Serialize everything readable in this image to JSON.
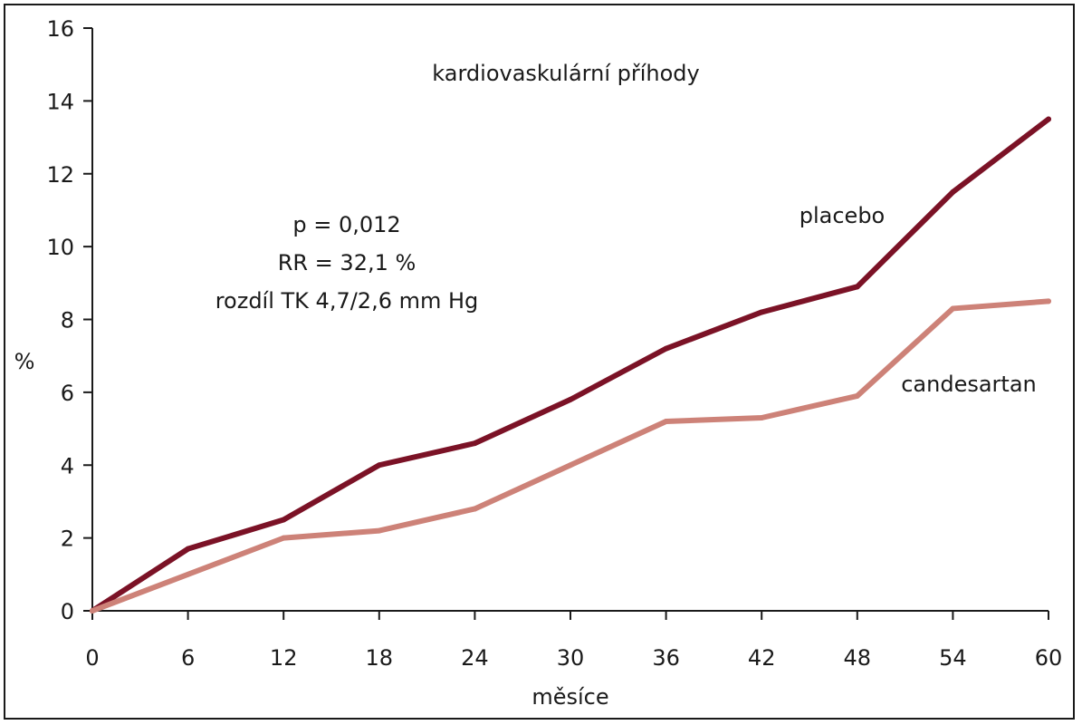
{
  "chart_data": {
    "type": "line",
    "title": "kardiovaskulární příhody",
    "xlabel": "měsíce",
    "ylabel": "%",
    "x": [
      0,
      6,
      12,
      18,
      24,
      30,
      36,
      42,
      48,
      54,
      60
    ],
    "xticks": [
      0,
      6,
      12,
      18,
      24,
      30,
      36,
      42,
      48,
      54,
      60
    ],
    "yticks": [
      0,
      2,
      4,
      6,
      8,
      10,
      12,
      14,
      16
    ],
    "xlim": [
      0,
      60
    ],
    "ylim": [
      0,
      16
    ],
    "grid": false,
    "series": [
      {
        "name": "placebo",
        "color": "#7b1226",
        "values": [
          0,
          1.7,
          2.5,
          4.0,
          4.6,
          5.8,
          7.2,
          8.2,
          8.9,
          11.5,
          13.5
        ]
      },
      {
        "name": "candesartan",
        "color": "#cd8278",
        "values": [
          0,
          1.0,
          2.0,
          2.2,
          2.8,
          4.0,
          5.2,
          5.3,
          5.9,
          8.3,
          8.5
        ]
      }
    ],
    "annotations": {
      "stats": [
        "p = 0,012",
        "RR = 32,1 %",
        "rozdíl TK 4,7/2,6 mm Hg"
      ]
    }
  }
}
